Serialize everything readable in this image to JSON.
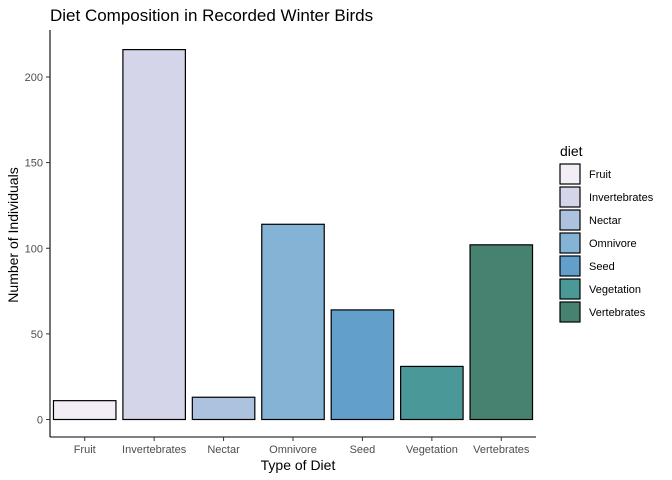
{
  "chart_data": {
    "type": "bar",
    "title": "Diet Composition in Recorded Winter Birds",
    "xlabel": "Type of Diet",
    "ylabel": "Number of Individuals",
    "categories": [
      "Fruit",
      "Invertebrates",
      "Nectar",
      "Omnivore",
      "Seed",
      "Vegetation",
      "Vertebrates"
    ],
    "values": [
      11,
      216,
      13,
      114,
      64,
      31,
      102
    ],
    "colors": [
      "#f3eef6",
      "#d4d5e9",
      "#adc2de",
      "#84b3d5",
      "#62a0cb",
      "#4b9898",
      "#47816f"
    ],
    "ylim": [
      0,
      226
    ],
    "yticks": [
      0,
      50,
      100,
      150,
      200
    ],
    "grid": false,
    "legend": {
      "title": "diet",
      "placement": "right",
      "entries": [
        "Fruit",
        "Invertebrates",
        "Nectar",
        "Omnivore",
        "Seed",
        "Vegetation",
        "Vertebrates"
      ]
    }
  }
}
